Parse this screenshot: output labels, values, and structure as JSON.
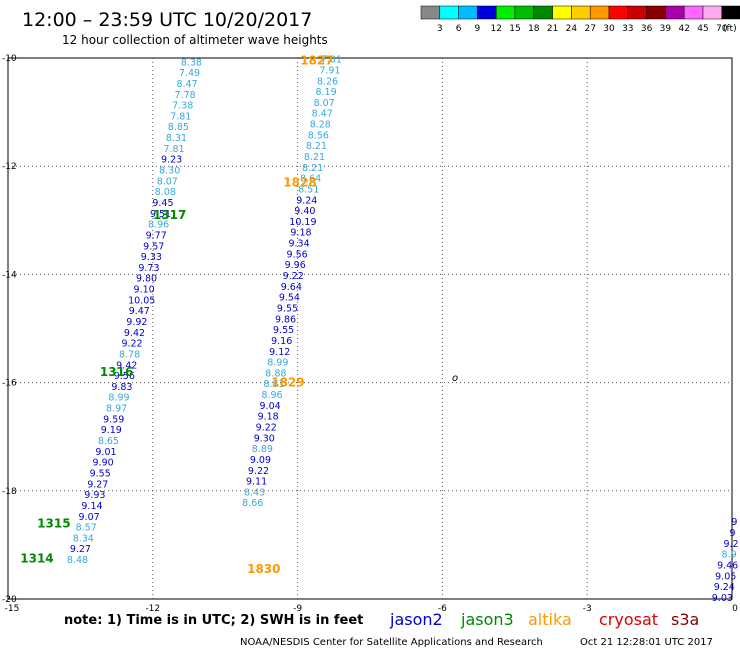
{
  "header": {
    "title": "12:00 – 23:59 UTC 10/20/2017",
    "subtitle": "12 hour collection of altimeter wave heights"
  },
  "colorbar": {
    "labels": [
      "3",
      "6",
      "9",
      "12",
      "15",
      "18",
      "21",
      "24",
      "27",
      "30",
      "33",
      "36",
      "39",
      "42",
      "45",
      "70"
    ],
    "unit": "(ft)",
    "colors": [
      "#888888",
      "#00ffff",
      "#00bbff",
      "#0000dd",
      "#00ee00",
      "#00bb00",
      "#008800",
      "#ffff00",
      "#ffcc00",
      "#ff9900",
      "#ff0000",
      "#cc0000",
      "#880000",
      "#aa00aa",
      "#ff66ff",
      "#ffaaee",
      "#000000"
    ]
  },
  "footer": {
    "note": "note:  1) Time is in UTC;  2) SWH is in feet",
    "credit": "NOAA/NESDIS Center for Satellite Applications and Research",
    "timestamp": "Oct 21 12:28:01 UTC 2017"
  },
  "legend": [
    {
      "name": "jason2",
      "color": "#0000cc"
    },
    {
      "name": "jason3",
      "color": "#008800"
    },
    {
      "name": "altika",
      "color": "#ff9900"
    },
    {
      "name": "cryosat",
      "color": "#dd0000"
    },
    {
      "name": "s3a",
      "color": "#880000"
    }
  ],
  "chart_data": {
    "type": "scatter",
    "title": "12:00 – 23:59 UTC 10/20/2017",
    "xlabel": "",
    "ylabel": "",
    "xlim": [
      -15,
      0
    ],
    "ylim": [
      -20,
      -10
    ],
    "x_ticks": [
      "-15",
      "-12",
      "-9",
      "-6",
      "-3",
      "0"
    ],
    "y_ticks": [
      "-10",
      "-12",
      "-14",
      "-16",
      "-18",
      "-20"
    ],
    "grid": true,
    "pass_labels": [
      {
        "text": "1827",
        "x": -8.6,
        "y": -10.05,
        "color": "#ff9900"
      },
      {
        "text": "1828",
        "x": -8.95,
        "y": -12.3,
        "color": "#ff9900"
      },
      {
        "text": "1317",
        "x": -11.65,
        "y": -12.9,
        "color": "#008800"
      },
      {
        "text": "1829",
        "x": -9.2,
        "y": -16.0,
        "color": "#ff9900"
      },
      {
        "text": "1316",
        "x": -12.75,
        "y": -15.8,
        "color": "#008800"
      },
      {
        "text": "1315",
        "x": -14.05,
        "y": -18.6,
        "color": "#008800"
      },
      {
        "text": "1314",
        "x": -14.4,
        "y": -19.25,
        "color": "#008800"
      },
      {
        "text": "1830",
        "x": -9.7,
        "y": -19.45,
        "color": "#ff9900"
      }
    ],
    "series": [
      {
        "name": "1317",
        "values": [
          {
            "x": -11.2,
            "y": -10.08,
            "v": "8.38",
            "c": "#33aadd"
          },
          {
            "x": -11.24,
            "y": -10.28,
            "v": "7.49",
            "c": "#33aadd"
          },
          {
            "x": -11.29,
            "y": -10.48,
            "v": "8.47",
            "c": "#33aadd"
          },
          {
            "x": -11.33,
            "y": -10.68,
            "v": "7.78",
            "c": "#33aadd"
          },
          {
            "x": -11.38,
            "y": -10.88,
            "v": "7.38",
            "c": "#33aadd"
          },
          {
            "x": -11.42,
            "y": -11.08,
            "v": "7.81",
            "c": "#33aadd"
          },
          {
            "x": -11.47,
            "y": -11.28,
            "v": "8.85",
            "c": "#33aadd"
          },
          {
            "x": -11.51,
            "y": -11.48,
            "v": "8.31",
            "c": "#33aadd"
          },
          {
            "x": -11.56,
            "y": -11.68,
            "v": "7.81",
            "c": "#33aadd"
          },
          {
            "x": -11.61,
            "y": -11.88,
            "v": "9.23",
            "c": "#0000cc"
          },
          {
            "x": -11.65,
            "y": -12.08,
            "v": "8.30",
            "c": "#33aadd"
          },
          {
            "x": -11.7,
            "y": -12.28,
            "v": "8.07",
            "c": "#33aadd"
          },
          {
            "x": -11.74,
            "y": -12.48,
            "v": "8.08",
            "c": "#33aadd"
          },
          {
            "x": -11.79,
            "y": -12.68,
            "v": "9.45",
            "c": "#0000cc"
          },
          {
            "x": -11.84,
            "y": -12.88,
            "v": "9.51",
            "c": "#0000cc"
          },
          {
            "x": -11.88,
            "y": -13.08,
            "v": "8.96",
            "c": "#33aadd"
          },
          {
            "x": -11.93,
            "y": -13.28,
            "v": "9.77",
            "c": "#0000cc"
          },
          {
            "x": -11.98,
            "y": -13.48,
            "v": "9.57",
            "c": "#0000cc"
          },
          {
            "x": -12.03,
            "y": -13.68,
            "v": "9.33",
            "c": "#0000cc"
          },
          {
            "x": -12.08,
            "y": -13.88,
            "v": "9.73",
            "c": "#0000cc"
          },
          {
            "x": -12.13,
            "y": -14.08,
            "v": "9.80",
            "c": "#0000cc"
          },
          {
            "x": -12.18,
            "y": -14.28,
            "v": "9.10",
            "c": "#0000cc"
          },
          {
            "x": -12.23,
            "y": -14.48,
            "v": "10.05",
            "c": "#0000cc"
          },
          {
            "x": -12.28,
            "y": -14.68,
            "v": "9.47",
            "c": "#0000cc"
          },
          {
            "x": -12.33,
            "y": -14.88,
            "v": "9.92",
            "c": "#0000cc"
          },
          {
            "x": -12.38,
            "y": -15.08,
            "v": "9.42",
            "c": "#0000cc"
          },
          {
            "x": -12.43,
            "y": -15.28,
            "v": "9.22",
            "c": "#0000cc"
          },
          {
            "x": -12.48,
            "y": -15.48,
            "v": "8.78",
            "c": "#33aadd"
          },
          {
            "x": -12.54,
            "y": -15.68,
            "v": "9.42",
            "c": "#0000cc"
          },
          {
            "x": -12.59,
            "y": -15.88,
            "v": "9.56",
            "c": "#0000cc"
          }
        ]
      },
      {
        "name": "1316",
        "values": [
          {
            "x": -12.64,
            "y": -16.08,
            "v": "9.83",
            "c": "#0000cc"
          },
          {
            "x": -12.7,
            "y": -16.28,
            "v": "8.99",
            "c": "#33aadd"
          },
          {
            "x": -12.75,
            "y": -16.48,
            "v": "8.97",
            "c": "#33aadd"
          },
          {
            "x": -12.81,
            "y": -16.68,
            "v": "9.59",
            "c": "#0000cc"
          },
          {
            "x": -12.86,
            "y": -16.88,
            "v": "9.19",
            "c": "#0000cc"
          },
          {
            "x": -12.92,
            "y": -17.08,
            "v": "8.65",
            "c": "#33aadd"
          },
          {
            "x": -12.97,
            "y": -17.28,
            "v": "9.01",
            "c": "#0000cc"
          },
          {
            "x": -13.03,
            "y": -17.48,
            "v": "9.90",
            "c": "#0000cc"
          },
          {
            "x": -13.09,
            "y": -17.68,
            "v": "9.55",
            "c": "#0000cc"
          },
          {
            "x": -13.14,
            "y": -17.88,
            "v": "9.27",
            "c": "#0000cc"
          },
          {
            "x": -13.2,
            "y": -18.08,
            "v": "9.93",
            "c": "#0000cc"
          },
          {
            "x": -13.26,
            "y": -18.28,
            "v": "9.14",
            "c": "#0000cc"
          },
          {
            "x": -13.32,
            "y": -18.48,
            "v": "9.07",
            "c": "#0000cc"
          },
          {
            "x": -13.38,
            "y": -18.68,
            "v": "8.57",
            "c": "#33aadd"
          },
          {
            "x": -13.44,
            "y": -18.88,
            "v": "8.34",
            "c": "#33aadd"
          },
          {
            "x": -13.5,
            "y": -19.08,
            "v": "9.27",
            "c": "#0000cc"
          },
          {
            "x": -13.56,
            "y": -19.28,
            "v": "8.48",
            "c": "#33aadd"
          }
        ]
      },
      {
        "name": "1827",
        "values": [
          {
            "x": -8.3,
            "y": -10.03,
            "v": "7.81",
            "c": "#33aadd"
          },
          {
            "x": -8.33,
            "y": -10.23,
            "v": "7.91",
            "c": "#33aadd"
          },
          {
            "x": -8.38,
            "y": -10.43,
            "v": "8.26",
            "c": "#33aadd"
          },
          {
            "x": -8.41,
            "y": -10.63,
            "v": "8.19",
            "c": "#33aadd"
          },
          {
            "x": -8.45,
            "y": -10.83,
            "v": "8.07",
            "c": "#33aadd"
          },
          {
            "x": -8.49,
            "y": -11.03,
            "v": "8.47",
            "c": "#33aadd"
          },
          {
            "x": -8.53,
            "y": -11.23,
            "v": "8.28",
            "c": "#33aadd"
          },
          {
            "x": -8.57,
            "y": -11.43,
            "v": "8.56",
            "c": "#33aadd"
          },
          {
            "x": -8.61,
            "y": -11.63,
            "v": "8.21",
            "c": "#33aadd"
          },
          {
            "x": -8.65,
            "y": -11.83,
            "v": "8.21",
            "c": "#33aadd"
          }
        ]
      },
      {
        "name": "1828",
        "values": [
          {
            "x": -8.69,
            "y": -12.03,
            "v": "8.21",
            "c": "#33aadd"
          },
          {
            "x": -8.73,
            "y": -12.23,
            "v": "8.64",
            "c": "#33aadd"
          },
          {
            "x": -8.77,
            "y": -12.43,
            "v": "8.51",
            "c": "#33aadd"
          },
          {
            "x": -8.81,
            "y": -12.63,
            "v": "9.24",
            "c": "#0000cc"
          },
          {
            "x": -8.85,
            "y": -12.83,
            "v": "9.40",
            "c": "#0000cc"
          },
          {
            "x": -8.89,
            "y": -13.03,
            "v": "10.19",
            "c": "#0000cc"
          },
          {
            "x": -8.93,
            "y": -13.23,
            "v": "9.18",
            "c": "#0000cc"
          },
          {
            "x": -8.97,
            "y": -13.43,
            "v": "9.34",
            "c": "#0000cc"
          },
          {
            "x": -9.01,
            "y": -13.63,
            "v": "9.56",
            "c": "#0000cc"
          },
          {
            "x": -9.05,
            "y": -13.83,
            "v": "9.96",
            "c": "#0000cc"
          },
          {
            "x": -9.09,
            "y": -14.03,
            "v": "9.22",
            "c": "#0000cc"
          },
          {
            "x": -9.13,
            "y": -14.23,
            "v": "9.64",
            "c": "#0000cc"
          },
          {
            "x": -9.17,
            "y": -14.43,
            "v": "9.54",
            "c": "#0000cc"
          },
          {
            "x": -9.21,
            "y": -14.63,
            "v": "9.55",
            "c": "#0000cc"
          },
          {
            "x": -9.25,
            "y": -14.83,
            "v": "9.86",
            "c": "#0000cc"
          },
          {
            "x": -9.29,
            "y": -15.03,
            "v": "9.55",
            "c": "#0000cc"
          }
        ]
      },
      {
        "name": "1829",
        "values": [
          {
            "x": -9.33,
            "y": -15.23,
            "v": "9.16",
            "c": "#0000cc"
          },
          {
            "x": -9.37,
            "y": -15.43,
            "v": "9.12",
            "c": "#0000cc"
          },
          {
            "x": -9.41,
            "y": -15.63,
            "v": "8.99",
            "c": "#33aadd"
          },
          {
            "x": -9.45,
            "y": -15.83,
            "v": "8.88",
            "c": "#33aadd"
          },
          {
            "x": -9.49,
            "y": -16.03,
            "v": "8.81",
            "c": "#33aadd"
          },
          {
            "x": -9.53,
            "y": -16.23,
            "v": "8.96",
            "c": "#33aadd"
          },
          {
            "x": -9.57,
            "y": -16.43,
            "v": "9.04",
            "c": "#0000cc"
          },
          {
            "x": -9.61,
            "y": -16.63,
            "v": "9.18",
            "c": "#0000cc"
          },
          {
            "x": -9.65,
            "y": -16.83,
            "v": "9.22",
            "c": "#0000cc"
          },
          {
            "x": -9.69,
            "y": -17.03,
            "v": "9.30",
            "c": "#0000cc"
          },
          {
            "x": -9.73,
            "y": -17.23,
            "v": "8.89",
            "c": "#33aadd"
          },
          {
            "x": -9.77,
            "y": -17.43,
            "v": "9.09",
            "c": "#0000cc"
          },
          {
            "x": -9.81,
            "y": -17.63,
            "v": "9.22",
            "c": "#0000cc"
          },
          {
            "x": -9.85,
            "y": -17.83,
            "v": "9.11",
            "c": "#0000cc"
          },
          {
            "x": -9.89,
            "y": -18.03,
            "v": "8.43",
            "c": "#33aadd"
          },
          {
            "x": -9.93,
            "y": -18.23,
            "v": "8.66",
            "c": "#33aadd"
          }
        ]
      },
      {
        "name": "",
        "values": [
          {
            "x": 0.05,
            "y": -18.58,
            "v": "9",
            "c": "#0000cc"
          },
          {
            "x": 0.01,
            "y": -18.78,
            "v": "9",
            "c": "#0000cc"
          },
          {
            "x": -0.02,
            "y": -18.98,
            "v": "9.2",
            "c": "#0000cc"
          },
          {
            "x": -0.06,
            "y": -19.18,
            "v": "8.9",
            "c": "#33aadd"
          },
          {
            "x": -0.09,
            "y": -19.38,
            "v": "9.46",
            "c": "#0000cc"
          },
          {
            "x": -0.13,
            "y": -19.58,
            "v": "9.05",
            "c": "#0000cc"
          },
          {
            "x": -0.16,
            "y": -19.78,
            "v": "9.24",
            "c": "#0000cc"
          },
          {
            "x": -0.2,
            "y": -19.98,
            "v": "9.03",
            "c": "#0000cc"
          }
        ]
      }
    ]
  }
}
